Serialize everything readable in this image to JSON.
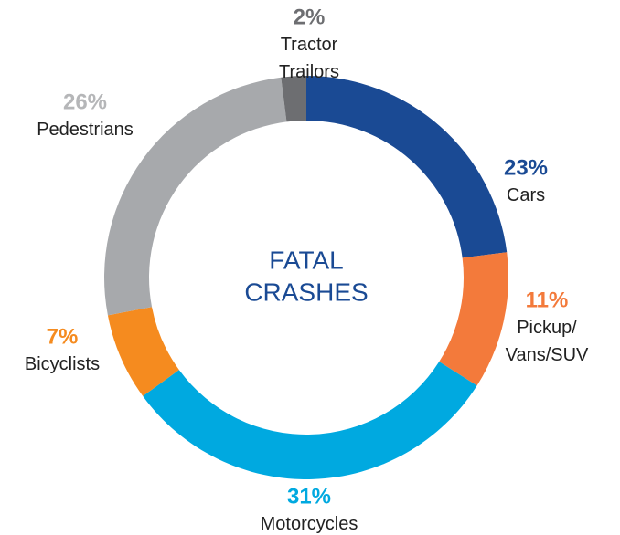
{
  "chart_data": {
    "type": "donut",
    "center_label": [
      "FATAL",
      "CRASHES"
    ],
    "categories": [
      "Cars",
      "Pickup/ Vans/SUV",
      "Motorcycles",
      "Bicyclists",
      "Pedestrians",
      "Tractor Trailors"
    ],
    "values": [
      23,
      11,
      31,
      7,
      26,
      2
    ],
    "value_labels": [
      "23%",
      "11%",
      "31%",
      "7%",
      "26%",
      "2%"
    ],
    "colors": [
      "#1a4a94",
      "#f37a3b",
      "#00a9e0",
      "#f58b1f",
      "#a7a9ac",
      "#6d6e71"
    ]
  }
}
